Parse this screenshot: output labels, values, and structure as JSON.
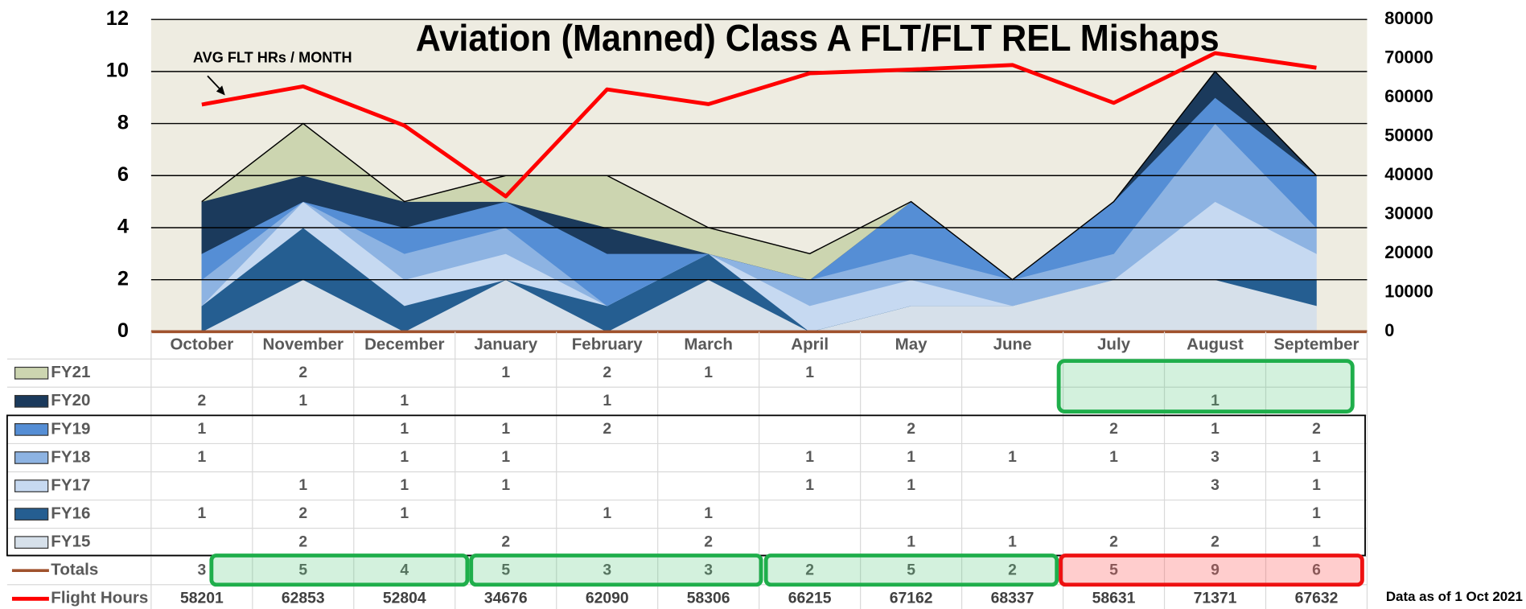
{
  "chart_data": {
    "type": "area",
    "title": "Aviation (Manned) Class A FLT/FLT REL Mishaps",
    "annotation": "AVG FLT HRs / MONTH",
    "note": "Data as of  1 Oct 2021",
    "categories": [
      "October",
      "November",
      "December",
      "January",
      "February",
      "March",
      "April",
      "May",
      "June",
      "July",
      "August",
      "September"
    ],
    "ylim": [
      0,
      12
    ],
    "yticks": [
      0,
      2,
      4,
      6,
      8,
      10,
      12
    ],
    "y2lim": [
      0,
      80000
    ],
    "y2ticks": [
      0,
      10000,
      20000,
      30000,
      40000,
      50000,
      60000,
      70000,
      80000
    ],
    "grid": true,
    "stacked": true,
    "series": [
      {
        "name": "FY21",
        "color": "#ccd5b0",
        "values": [
          null,
          2,
          null,
          1,
          2,
          1,
          1,
          null,
          null,
          null,
          null,
          null
        ]
      },
      {
        "name": "FY20",
        "color": "#1b3a5c",
        "values": [
          2,
          1,
          1,
          null,
          1,
          null,
          null,
          null,
          null,
          null,
          1,
          null
        ]
      },
      {
        "name": "FY19",
        "color": "#558ed5",
        "values": [
          1,
          null,
          1,
          1,
          2,
          null,
          null,
          2,
          null,
          2,
          1,
          2
        ]
      },
      {
        "name": "FY18",
        "color": "#8db3e2",
        "values": [
          1,
          null,
          1,
          1,
          null,
          null,
          1,
          1,
          1,
          1,
          3,
          1
        ]
      },
      {
        "name": "FY17",
        "color": "#c6d9f1",
        "values": [
          null,
          1,
          1,
          1,
          null,
          null,
          1,
          1,
          null,
          null,
          3,
          1
        ]
      },
      {
        "name": "FY16",
        "color": "#255e91",
        "values": [
          1,
          2,
          1,
          null,
          1,
          1,
          null,
          null,
          null,
          null,
          null,
          1
        ]
      },
      {
        "name": "FY15",
        "color": "#d6e0ea",
        "values": [
          null,
          2,
          null,
          2,
          null,
          2,
          null,
          1,
          1,
          2,
          2,
          1
        ]
      },
      {
        "name": "Totals",
        "type": "table",
        "color": "#a0522d",
        "values": [
          3,
          5,
          4,
          5,
          3,
          3,
          2,
          5,
          2,
          5,
          9,
          6
        ]
      },
      {
        "name": "Flight Hours",
        "type": "line",
        "axis": "y2",
        "color": "#ff0000",
        "values": [
          58201,
          62853,
          52804,
          34676,
          62090,
          58306,
          66215,
          67162,
          68337,
          58631,
          71371,
          67632
        ]
      }
    ]
  }
}
